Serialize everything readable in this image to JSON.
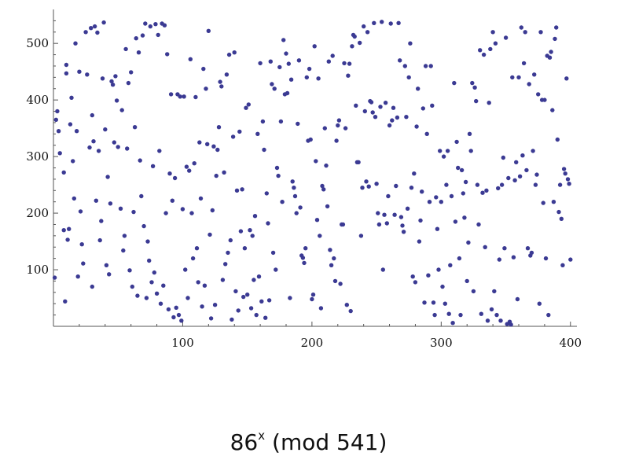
{
  "caption": {
    "base": "86",
    "exponent": "x",
    "rest": " (mod 541)"
  },
  "colors": {
    "point": "#3b3a93",
    "axis": "#555555"
  },
  "chart_data": {
    "type": "scatter",
    "title": "86x (mod 541)",
    "xlabel": "",
    "ylabel": "",
    "xlim": [
      0,
      405
    ],
    "ylim": [
      0,
      560
    ],
    "xticks": [
      100,
      200,
      300,
      400
    ],
    "yticks": [
      100,
      200,
      300,
      400,
      500
    ],
    "grid": false,
    "points": [
      [
        1,
        86
      ],
      [
        2,
        365
      ],
      [
        3,
        380
      ],
      [
        4,
        345
      ],
      [
        5,
        306
      ],
      [
        8,
        170
      ],
      [
        8,
        272
      ],
      [
        9,
        44
      ],
      [
        10,
        462
      ],
      [
        10,
        447
      ],
      [
        11,
        153
      ],
      [
        12,
        172
      ],
      [
        13,
        357
      ],
      [
        14,
        404
      ],
      [
        15,
        292
      ],
      [
        16,
        226
      ],
      [
        17,
        500
      ],
      [
        18,
        345
      ],
      [
        19,
        88
      ],
      [
        20,
        450
      ],
      [
        21,
        203
      ],
      [
        22,
        145
      ],
      [
        23,
        111
      ],
      [
        25,
        520
      ],
      [
        26,
        445
      ],
      [
        28,
        316
      ],
      [
        29,
        527
      ],
      [
        30,
        373
      ],
      [
        30,
        70
      ],
      [
        31,
        327
      ],
      [
        32,
        530
      ],
      [
        33,
        222
      ],
      [
        34,
        519
      ],
      [
        35,
        310
      ],
      [
        36,
        152
      ],
      [
        37,
        186
      ],
      [
        38,
        438
      ],
      [
        39,
        537
      ],
      [
        40,
        348
      ],
      [
        41,
        108
      ],
      [
        42,
        264
      ],
      [
        43,
        92
      ],
      [
        44,
        217
      ],
      [
        45,
        433
      ],
      [
        46,
        427
      ],
      [
        47,
        325
      ],
      [
        48,
        442
      ],
      [
        49,
        399
      ],
      [
        50,
        317
      ],
      [
        52,
        208
      ],
      [
        53,
        382
      ],
      [
        54,
        134
      ],
      [
        55,
        160
      ],
      [
        56,
        490
      ],
      [
        57,
        314
      ],
      [
        58,
        430
      ],
      [
        59,
        99
      ],
      [
        60,
        449
      ],
      [
        61,
        70
      ],
      [
        62,
        202
      ],
      [
        63,
        352
      ],
      [
        64,
        509
      ],
      [
        65,
        54
      ],
      [
        66,
        484
      ],
      [
        67,
        293
      ],
      [
        68,
        230
      ],
      [
        69,
        514
      ],
      [
        70,
        177
      ],
      [
        71,
        535
      ],
      [
        72,
        50
      ],
      [
        73,
        150
      ],
      [
        74,
        116
      ],
      [
        75,
        530
      ],
      [
        76,
        78
      ],
      [
        77,
        283
      ],
      [
        78,
        95
      ],
      [
        79,
        534
      ],
      [
        80,
        58
      ],
      [
        81,
        515
      ],
      [
        82,
        310
      ],
      [
        83,
        40
      ],
      [
        84,
        535
      ],
      [
        85,
        72
      ],
      [
        86,
        532
      ],
      [
        87,
        200
      ],
      [
        88,
        481
      ],
      [
        89,
        30
      ],
      [
        90,
        270
      ],
      [
        91,
        410
      ],
      [
        92,
        222
      ],
      [
        93,
        16
      ],
      [
        94,
        262
      ],
      [
        95,
        33
      ],
      [
        96,
        410
      ],
      [
        97,
        20
      ],
      [
        98,
        406
      ],
      [
        99,
        10
      ],
      [
        100,
        207
      ],
      [
        101,
        406
      ],
      [
        102,
        100
      ],
      [
        103,
        282
      ],
      [
        104,
        50
      ],
      [
        105,
        275
      ],
      [
        106,
        472
      ],
      [
        107,
        200
      ],
      [
        108,
        120
      ],
      [
        109,
        288
      ],
      [
        110,
        405
      ],
      [
        111,
        138
      ],
      [
        112,
        78
      ],
      [
        113,
        325
      ],
      [
        114,
        226
      ],
      [
        115,
        35
      ],
      [
        116,
        455
      ],
      [
        117,
        72
      ],
      [
        118,
        420
      ],
      [
        119,
        322
      ],
      [
        120,
        522
      ],
      [
        121,
        162
      ],
      [
        122,
        14
      ],
      [
        123,
        205
      ],
      [
        124,
        318
      ],
      [
        125,
        38
      ],
      [
        126,
        266
      ],
      [
        127,
        312
      ],
      [
        128,
        352
      ],
      [
        129,
        432
      ],
      [
        130,
        424
      ],
      [
        131,
        82
      ],
      [
        132,
        272
      ],
      [
        133,
        110
      ],
      [
        134,
        445
      ],
      [
        135,
        130
      ],
      [
        136,
        480
      ],
      [
        137,
        152
      ],
      [
        138,
        12
      ],
      [
        139,
        335
      ],
      [
        140,
        484
      ],
      [
        141,
        62
      ],
      [
        142,
        240
      ],
      [
        143,
        28
      ],
      [
        144,
        344
      ],
      [
        145,
        168
      ],
      [
        146,
        242
      ],
      [
        147,
        52
      ],
      [
        148,
        138
      ],
      [
        149,
        386
      ],
      [
        150,
        56
      ],
      [
        151,
        392
      ],
      [
        152,
        170
      ],
      [
        153,
        32
      ],
      [
        154,
        160
      ],
      [
        155,
        82
      ],
      [
        156,
        195
      ],
      [
        157,
        20
      ],
      [
        158,
        340
      ],
      [
        159,
        88
      ],
      [
        160,
        465
      ],
      [
        161,
        44
      ],
      [
        162,
        362
      ],
      [
        163,
        312
      ],
      [
        164,
        15
      ],
      [
        165,
        235
      ],
      [
        166,
        182
      ],
      [
        167,
        46
      ],
      [
        168,
        468
      ],
      [
        169,
        428
      ],
      [
        170,
        130
      ],
      [
        171,
        420
      ],
      [
        172,
        100
      ],
      [
        173,
        280
      ],
      [
        174,
        266
      ],
      [
        175,
        458
      ],
      [
        176,
        362
      ],
      [
        177,
        220
      ],
      [
        178,
        506
      ],
      [
        179,
        410
      ],
      [
        180,
        482
      ],
      [
        181,
        412
      ],
      [
        182,
        464
      ],
      [
        183,
        50
      ],
      [
        184,
        436
      ],
      [
        185,
        256
      ],
      [
        186,
        245
      ],
      [
        187,
        230
      ],
      [
        188,
        200
      ],
      [
        189,
        358
      ],
      [
        190,
        470
      ],
      [
        191,
        210
      ],
      [
        192,
        125
      ],
      [
        193,
        121
      ],
      [
        194,
        112
      ],
      [
        195,
        138
      ],
      [
        196,
        440
      ],
      [
        197,
        328
      ],
      [
        198,
        455
      ],
      [
        199,
        330
      ],
      [
        200,
        48
      ],
      [
        201,
        56
      ],
      [
        202,
        495
      ],
      [
        203,
        292
      ],
      [
        204,
        188
      ],
      [
        205,
        438
      ],
      [
        206,
        160
      ],
      [
        207,
        32
      ],
      [
        208,
        248
      ],
      [
        209,
        242
      ],
      [
        210,
        350
      ],
      [
        211,
        284
      ],
      [
        212,
        212
      ],
      [
        213,
        468
      ],
      [
        214,
        135
      ],
      [
        215,
        108
      ],
      [
        216,
        478
      ],
      [
        217,
        120
      ],
      [
        218,
        80
      ],
      [
        219,
        328
      ],
      [
        220,
        355
      ],
      [
        221,
        364
      ],
      [
        222,
        75
      ],
      [
        223,
        180
      ],
      [
        224,
        180
      ],
      [
        225,
        465
      ],
      [
        226,
        350
      ],
      [
        227,
        38
      ],
      [
        228,
        443
      ],
      [
        229,
        464
      ],
      [
        230,
        27
      ],
      [
        231,
        495
      ],
      [
        232,
        515
      ],
      [
        233,
        512
      ],
      [
        234,
        390
      ],
      [
        235,
        290
      ],
      [
        236,
        290
      ],
      [
        237,
        501
      ],
      [
        238,
        160
      ],
      [
        239,
        245
      ],
      [
        240,
        530
      ],
      [
        241,
        380
      ],
      [
        242,
        256
      ],
      [
        243,
        520
      ],
      [
        244,
        247
      ],
      [
        245,
        398
      ],
      [
        246,
        396
      ],
      [
        247,
        378
      ],
      [
        248,
        536
      ],
      [
        249,
        370
      ],
      [
        250,
        252
      ],
      [
        251,
        200
      ],
      [
        252,
        180
      ],
      [
        253,
        388
      ],
      [
        254,
        538
      ],
      [
        255,
        100
      ],
      [
        256,
        197
      ],
      [
        257,
        395
      ],
      [
        258,
        182
      ],
      [
        259,
        230
      ],
      [
        260,
        355
      ],
      [
        261,
        535
      ],
      [
        262,
        364
      ],
      [
        263,
        386
      ],
      [
        264,
        197
      ],
      [
        265,
        248
      ],
      [
        266,
        369
      ],
      [
        267,
        536
      ],
      [
        268,
        470
      ],
      [
        269,
        193
      ],
      [
        270,
        178
      ],
      [
        271,
        167
      ],
      [
        272,
        460
      ],
      [
        273,
        370
      ],
      [
        274,
        208
      ],
      [
        275,
        440
      ],
      [
        276,
        500
      ],
      [
        277,
        245
      ],
      [
        278,
        88
      ],
      [
        279,
        270
      ],
      [
        280,
        78
      ],
      [
        281,
        353
      ],
      [
        282,
        420
      ],
      [
        283,
        150
      ],
      [
        284,
        187
      ],
      [
        285,
        238
      ],
      [
        286,
        385
      ],
      [
        287,
        42
      ],
      [
        288,
        460
      ],
      [
        289,
        340
      ],
      [
        290,
        90
      ],
      [
        291,
        220
      ],
      [
        292,
        460
      ],
      [
        293,
        390
      ],
      [
        294,
        42
      ],
      [
        295,
        20
      ],
      [
        296,
        228
      ],
      [
        297,
        172
      ],
      [
        298,
        100
      ],
      [
        299,
        310
      ],
      [
        300,
        220
      ],
      [
        301,
        70
      ],
      [
        302,
        300
      ],
      [
        303,
        40
      ],
      [
        304,
        250
      ],
      [
        305,
        310
      ],
      [
        306,
        22
      ],
      [
        307,
        108
      ],
      [
        308,
        230
      ],
      [
        309,
        6
      ],
      [
        310,
        430
      ],
      [
        311,
        185
      ],
      [
        312,
        326
      ],
      [
        313,
        280
      ],
      [
        314,
        120
      ],
      [
        315,
        20
      ],
      [
        316,
        276
      ],
      [
        317,
        235
      ],
      [
        318,
        192
      ],
      [
        319,
        255
      ],
      [
        320,
        80
      ],
      [
        321,
        148
      ],
      [
        322,
        340
      ],
      [
        323,
        310
      ],
      [
        324,
        430
      ],
      [
        325,
        62
      ],
      [
        326,
        422
      ],
      [
        327,
        398
      ],
      [
        328,
        250
      ],
      [
        329,
        180
      ],
      [
        330,
        488
      ],
      [
        331,
        22
      ],
      [
        332,
        236
      ],
      [
        333,
        480
      ],
      [
        334,
        140
      ],
      [
        335,
        240
      ],
      [
        336,
        10
      ],
      [
        337,
        395
      ],
      [
        338,
        490
      ],
      [
        339,
        30
      ],
      [
        340,
        520
      ],
      [
        341,
        62
      ],
      [
        342,
        500
      ],
      [
        343,
        20
      ],
      [
        344,
        244
      ],
      [
        345,
        118
      ],
      [
        346,
        10
      ],
      [
        347,
        250
      ],
      [
        348,
        298
      ],
      [
        349,
        138
      ],
      [
        350,
        510
      ],
      [
        351,
        4
      ],
      [
        352,
        262
      ],
      [
        353,
        8
      ],
      [
        354,
        3
      ],
      [
        355,
        440
      ],
      [
        356,
        122
      ],
      [
        357,
        258
      ],
      [
        358,
        290
      ],
      [
        359,
        48
      ],
      [
        360,
        440
      ],
      [
        361,
        265
      ],
      [
        362,
        528
      ],
      [
        363,
        302
      ],
      [
        364,
        465
      ],
      [
        365,
        520
      ],
      [
        366,
        276
      ],
      [
        367,
        138
      ],
      [
        368,
        428
      ],
      [
        369,
        125
      ],
      [
        370,
        130
      ],
      [
        371,
        310
      ],
      [
        372,
        445
      ],
      [
        373,
        250
      ],
      [
        374,
        268
      ],
      [
        375,
        410
      ],
      [
        376,
        40
      ],
      [
        377,
        520
      ],
      [
        378,
        400
      ],
      [
        379,
        218
      ],
      [
        380,
        400
      ],
      [
        381,
        120
      ],
      [
        382,
        478
      ],
      [
        383,
        20
      ],
      [
        384,
        475
      ],
      [
        385,
        485
      ],
      [
        386,
        382
      ],
      [
        387,
        220
      ],
      [
        388,
        508
      ],
      [
        389,
        528
      ],
      [
        390,
        330
      ],
      [
        391,
        202
      ],
      [
        392,
        250
      ],
      [
        393,
        190
      ],
      [
        394,
        108
      ],
      [
        395,
        278
      ],
      [
        396,
        270
      ],
      [
        397,
        438
      ],
      [
        398,
        260
      ],
      [
        399,
        252
      ],
      [
        400,
        118
      ]
    ]
  }
}
